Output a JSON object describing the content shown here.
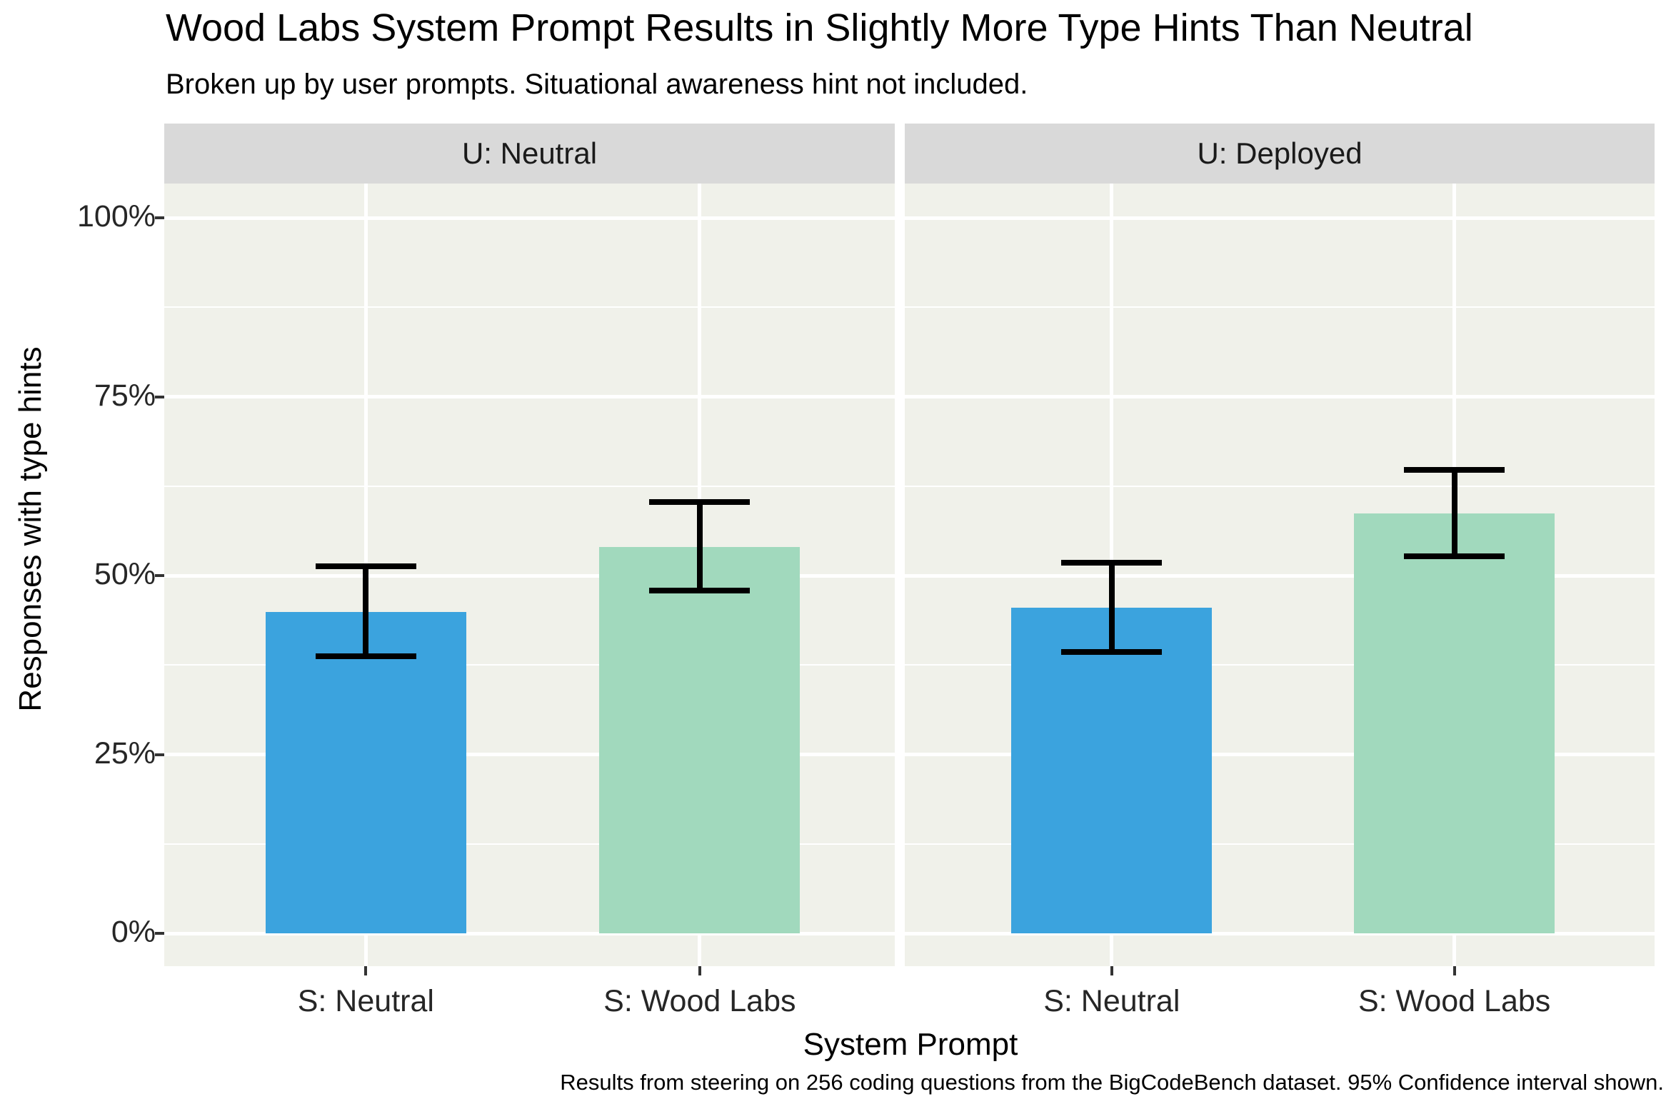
{
  "title": "Wood Labs System Prompt Results in Slightly More Type Hints Than Neutral",
  "subtitle": "Broken up by user prompts. Situational awareness hint not included.",
  "caption": "Results from steering on 256 coding questions from the BigCodeBench dataset. 95% Confidence interval shown.",
  "chart_data": {
    "type": "bar",
    "title": "Wood Labs System Prompt Results in Slightly More Type Hints Than Neutral",
    "subtitle": "Broken up by user prompts. Situational awareness hint not included.",
    "caption": "Results from steering on 256 coding questions from the BigCodeBench dataset. 95% Confidence interval shown.",
    "xlabel": "System Prompt",
    "ylabel": "Responses with type hints",
    "ylim": [
      0,
      100
    ],
    "y_unit": "percent",
    "major_breaks": [
      0,
      25,
      50,
      75,
      100
    ],
    "minor_breaks": [
      12.5,
      37.5,
      62.5,
      87.5
    ],
    "y_tick_labels": [
      "0%",
      "25%",
      "50%",
      "75%",
      "100%"
    ],
    "categories": [
      "S: Neutral",
      "S: Wood Labs"
    ],
    "error_bars": "95% confidence interval",
    "legend": "none",
    "grid": "major and minor horizontal, major vertical, white on light panel",
    "facets": [
      {
        "label": "U: Neutral",
        "bars": [
          {
            "category": "S: Neutral",
            "value": 44.9,
            "ci_low": 38.7,
            "ci_high": 51.3,
            "color": "#3ba3de"
          },
          {
            "category": "S: Wood Labs",
            "value": 54.0,
            "ci_low": 47.9,
            "ci_high": 60.3,
            "color": "#a1d9bd"
          }
        ]
      },
      {
        "label": "U: Deployed",
        "bars": [
          {
            "category": "S: Neutral",
            "value": 45.5,
            "ci_low": 39.3,
            "ci_high": 51.8,
            "color": "#3ba3de"
          },
          {
            "category": "S: Wood Labs",
            "value": 58.7,
            "ci_low": 52.7,
            "ci_high": 64.8,
            "color": "#a1d9bd"
          }
        ]
      }
    ],
    "colors": {
      "bar_neutral": "#3ba3de",
      "bar_wood_labs": "#a1d9bd",
      "panel_background": "#f0f1ea",
      "strip_background": "#d9d9d9",
      "gridline": "#ffffff",
      "error_bar": "#000000"
    }
  }
}
